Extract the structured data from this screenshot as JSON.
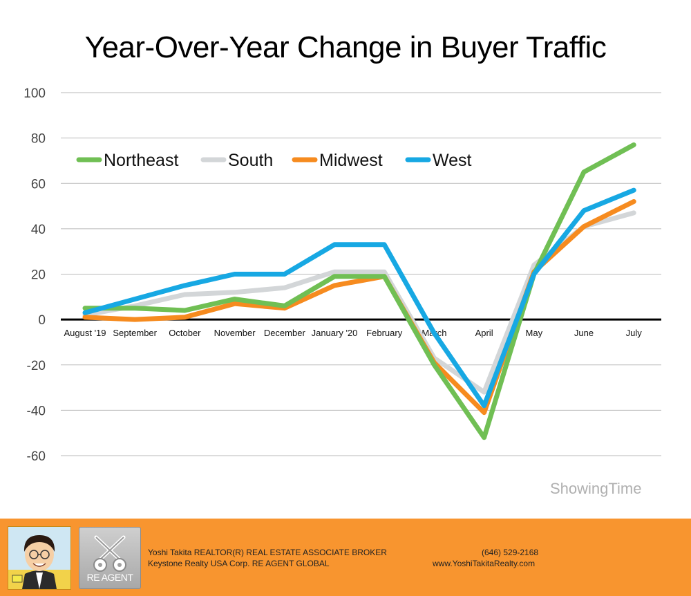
{
  "chart_data": {
    "type": "line",
    "title": "Year-Over-Year Change in Buyer Traffic",
    "categories": [
      "August '19",
      "September",
      "October",
      "November",
      "December",
      "January '20",
      "February",
      "March",
      "April",
      "May",
      "June",
      "July"
    ],
    "ylim": [
      -60,
      100
    ],
    "yticks": [
      100,
      80,
      60,
      40,
      20,
      0,
      -20,
      -40,
      -60
    ],
    "grid": true,
    "legend_position": "top-left",
    "series": [
      {
        "name": "South",
        "color": "#d3d6d8",
        "values": [
          2,
          6,
          11,
          12,
          14,
          21,
          21,
          -17,
          -32,
          24,
          41,
          47
        ]
      },
      {
        "name": "Midwest",
        "color": "#f68b1f",
        "values": [
          1,
          0,
          1,
          7,
          5,
          15,
          19,
          -19,
          -41,
          21,
          41,
          52
        ]
      },
      {
        "name": "Northeast",
        "color": "#70bf54",
        "values": [
          5,
          5,
          4,
          9,
          6,
          19,
          19,
          -20,
          -52,
          20,
          65,
          77
        ]
      },
      {
        "name": "West",
        "color": "#17a8e3",
        "values": [
          3,
          9,
          15,
          20,
          20,
          33,
          33,
          -6,
          -38,
          20,
          48,
          57
        ]
      }
    ],
    "legend_order": [
      "Northeast",
      "South",
      "Midwest",
      "West"
    ]
  },
  "watermark": "ShowingTime",
  "footer": {
    "agent_name": "Yoshi Takita REALTOR(R) REAL ESTATE ASSOCIATE BROKER",
    "company": "Keystone Realty USA Corp.  RE AGENT GLOBAL",
    "phone": "(646) 529-2168",
    "website": "www.YoshiTakitaRealty.com",
    "logo_text": "RE AGENT",
    "background_color": "#f8952f"
  }
}
